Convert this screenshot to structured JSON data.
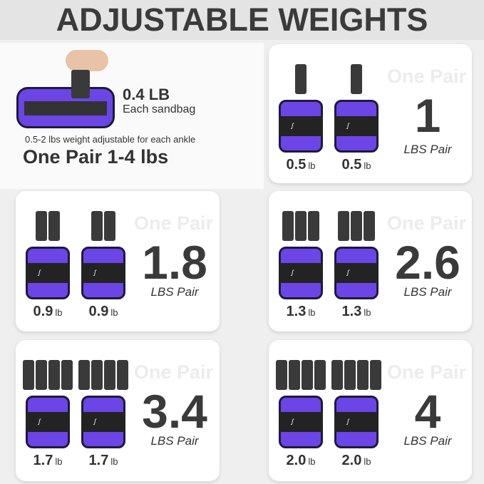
{
  "title": "ADJUSTABLE WEIGHTS",
  "intro": {
    "sandbag_weight": "0.4 LB",
    "sandbag_caption": "Each sandbag",
    "adjustable_note": "0.5-2 lbs weight adjustable for each ankle",
    "range": "One Pair 1-4 lbs"
  },
  "colors": {
    "purple": "#6b45e6",
    "sandbag": "#3a3a3a",
    "text": "#3a3a3a"
  },
  "cards": [
    {
      "bags": 1,
      "each": "0.5",
      "unit": "lb",
      "one_pair": "One Pair",
      "total": "1",
      "total_unit": "LBS Pair"
    },
    {
      "bags": 2,
      "each": "0.9",
      "unit": "lb",
      "one_pair": "One Pair",
      "total": "1.8",
      "total_unit": "LBS Pair"
    },
    {
      "bags": 3,
      "each": "1.3",
      "unit": "lb",
      "one_pair": "One Pair",
      "total": "2.6",
      "total_unit": "LBS Pair"
    },
    {
      "bags": 4,
      "each": "1.7",
      "unit": "lb",
      "one_pair": "One Pair",
      "total": "3.4",
      "total_unit": "LBS Pair"
    },
    {
      "bags": 4,
      "each": "2.0",
      "unit": "lb",
      "one_pair": "One Pair",
      "total": "4",
      "total_unit": "LBS Pair"
    }
  ]
}
